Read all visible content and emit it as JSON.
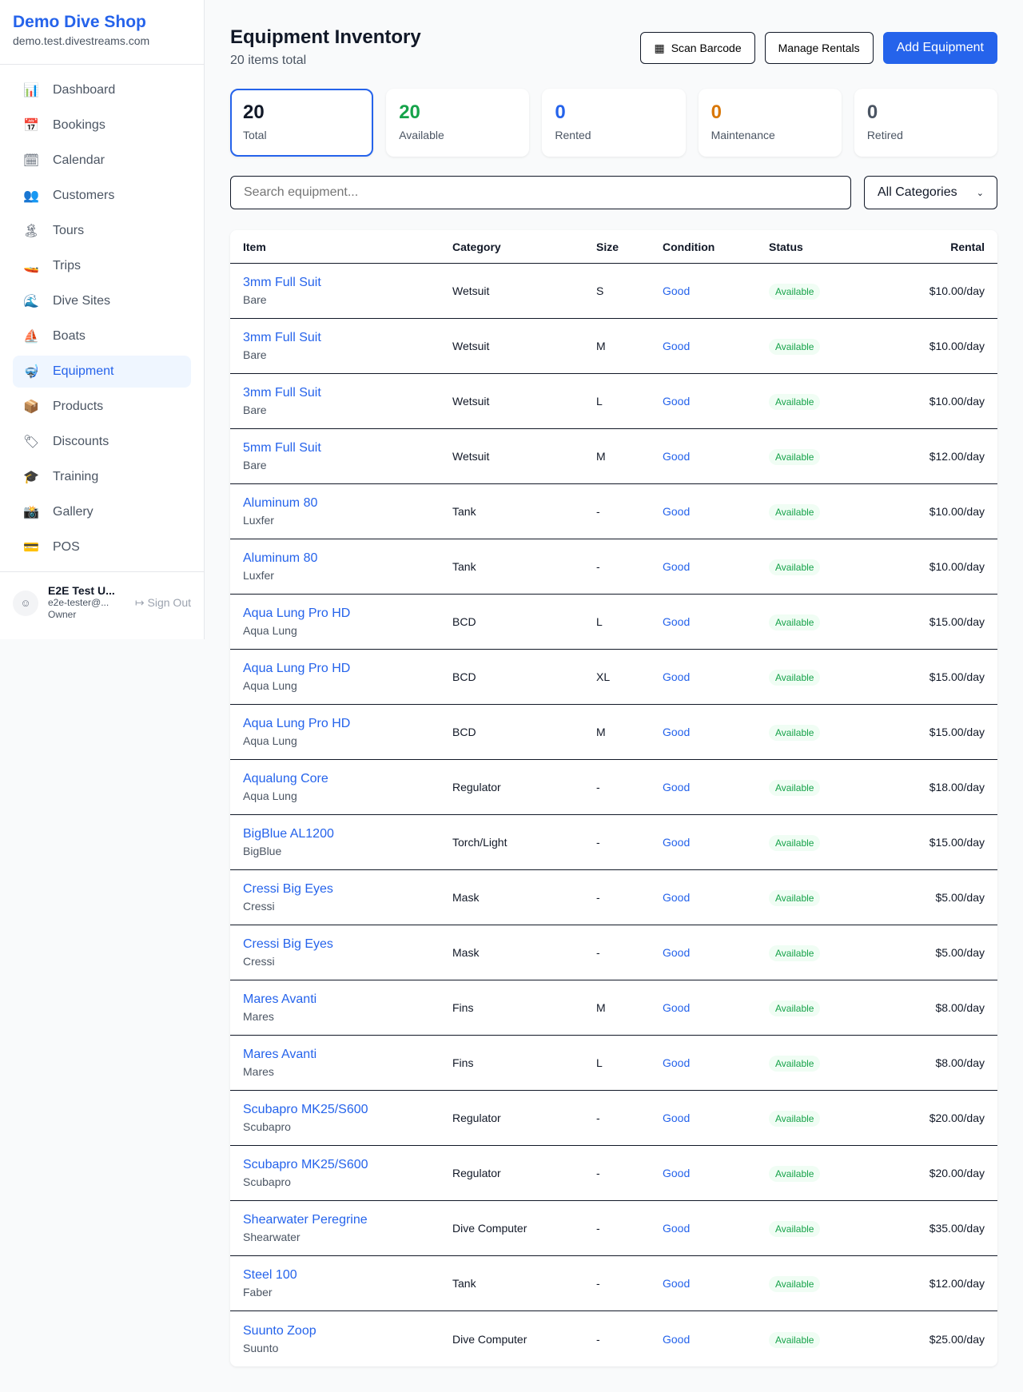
{
  "sidebar": {
    "brand": "Demo Dive Shop",
    "url": "demo.test.divestreams.com",
    "items": [
      {
        "icon": "📊",
        "label": "Dashboard"
      },
      {
        "icon": "📅",
        "label": "Bookings"
      },
      {
        "icon": "🗓",
        "label": "Calendar"
      },
      {
        "icon": "👥",
        "label": "Customers"
      },
      {
        "icon": "🏝",
        "label": "Tours"
      },
      {
        "icon": "🚤",
        "label": "Trips"
      },
      {
        "icon": "🌊",
        "label": "Dive Sites"
      },
      {
        "icon": "⛵",
        "label": "Boats"
      },
      {
        "icon": "🤿",
        "label": "Equipment"
      },
      {
        "icon": "📦",
        "label": "Products"
      },
      {
        "icon": "🏷",
        "label": "Discounts"
      },
      {
        "icon": "🎓",
        "label": "Training"
      },
      {
        "icon": "📸",
        "label": "Gallery"
      },
      {
        "icon": "💳",
        "label": "POS"
      }
    ],
    "active": "Equipment",
    "user": {
      "name": "E2E Test U...",
      "email": "e2e-tester@...",
      "role": "Owner",
      "sign_out": "Sign Out"
    }
  },
  "header": {
    "title": "Equipment Inventory",
    "subtitle": "20 items total",
    "scan": "Scan Barcode",
    "manage": "Manage Rentals",
    "add": "Add Equipment"
  },
  "stats": [
    {
      "value": "20",
      "label": "Total",
      "color": "#111827"
    },
    {
      "value": "20",
      "label": "Available",
      "color": "#16a34a"
    },
    {
      "value": "0",
      "label": "Rented",
      "color": "#2563eb"
    },
    {
      "value": "0",
      "label": "Maintenance",
      "color": "#d97706"
    },
    {
      "value": "0",
      "label": "Retired",
      "color": "#4b5563"
    }
  ],
  "filters": {
    "search_placeholder": "Search equipment...",
    "category": "All Categories"
  },
  "table": {
    "columns": [
      "Item",
      "Category",
      "Size",
      "Condition",
      "Status",
      "Rental"
    ],
    "rows": [
      [
        "3mm Full Suit",
        "Bare",
        "Wetsuit",
        "S",
        "Good",
        "Available",
        "$10.00/day"
      ],
      [
        "3mm Full Suit",
        "Bare",
        "Wetsuit",
        "M",
        "Good",
        "Available",
        "$10.00/day"
      ],
      [
        "3mm Full Suit",
        "Bare",
        "Wetsuit",
        "L",
        "Good",
        "Available",
        "$10.00/day"
      ],
      [
        "5mm Full Suit",
        "Bare",
        "Wetsuit",
        "M",
        "Good",
        "Available",
        "$12.00/day"
      ],
      [
        "Aluminum 80",
        "Luxfer",
        "Tank",
        "-",
        "Good",
        "Available",
        "$10.00/day"
      ],
      [
        "Aluminum 80",
        "Luxfer",
        "Tank",
        "-",
        "Good",
        "Available",
        "$10.00/day"
      ],
      [
        "Aqua Lung Pro HD",
        "Aqua Lung",
        "BCD",
        "L",
        "Good",
        "Available",
        "$15.00/day"
      ],
      [
        "Aqua Lung Pro HD",
        "Aqua Lung",
        "BCD",
        "XL",
        "Good",
        "Available",
        "$15.00/day"
      ],
      [
        "Aqua Lung Pro HD",
        "Aqua Lung",
        "BCD",
        "M",
        "Good",
        "Available",
        "$15.00/day"
      ],
      [
        "Aqualung Core",
        "Aqua Lung",
        "Regulator",
        "-",
        "Good",
        "Available",
        "$18.00/day"
      ],
      [
        "BigBlue AL1200",
        "BigBlue",
        "Torch/Light",
        "-",
        "Good",
        "Available",
        "$15.00/day"
      ],
      [
        "Cressi Big Eyes",
        "Cressi",
        "Mask",
        "-",
        "Good",
        "Available",
        "$5.00/day"
      ],
      [
        "Cressi Big Eyes",
        "Cressi",
        "Mask",
        "-",
        "Good",
        "Available",
        "$5.00/day"
      ],
      [
        "Mares Avanti",
        "Mares",
        "Fins",
        "M",
        "Good",
        "Available",
        "$8.00/day"
      ],
      [
        "Mares Avanti",
        "Mares",
        "Fins",
        "L",
        "Good",
        "Available",
        "$8.00/day"
      ],
      [
        "Scubapro MK25/S600",
        "Scubapro",
        "Regulator",
        "-",
        "Good",
        "Available",
        "$20.00/day"
      ],
      [
        "Scubapro MK25/S600",
        "Scubapro",
        "Regulator",
        "-",
        "Good",
        "Available",
        "$20.00/day"
      ],
      [
        "Shearwater Peregrine",
        "Shearwater",
        "Dive Computer",
        "-",
        "Good",
        "Available",
        "$35.00/day"
      ],
      [
        "Steel 100",
        "Faber",
        "Tank",
        "-",
        "Good",
        "Available",
        "$12.00/day"
      ],
      [
        "Suunto Zoop",
        "Suunto",
        "Dive Computer",
        "-",
        "Good",
        "Available",
        "$25.00/day"
      ]
    ]
  }
}
